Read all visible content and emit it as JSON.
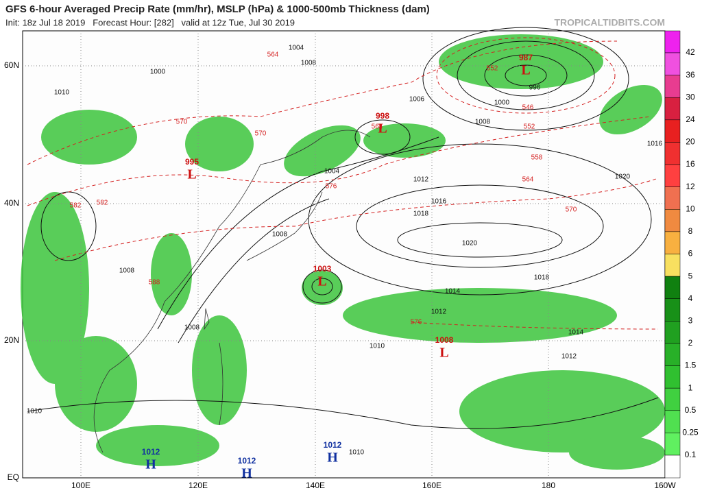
{
  "header": {
    "title": "GFS 6-hour Averaged Precip Rate (mm/hr), MSLP (hPa) & 1000-500mb Thickness (dam)",
    "subtitle": "Init: 18z Jul 18 2019   Forecast Hour: [282]   valid at 12z Tue, Jul 30 2019",
    "watermark": "TROPICALTIDBITS.COM"
  },
  "map": {
    "lat_labels": [
      "60N",
      "40N",
      "20N",
      "EQ"
    ],
    "lon_labels": [
      "100E",
      "120E",
      "140E",
      "160E",
      "180",
      "160W"
    ],
    "colorbar": [
      "42",
      "36",
      "30",
      "24",
      "20",
      "16",
      "12",
      "10",
      "8",
      "6",
      "5",
      "4",
      "3",
      "2",
      "1.5",
      "1",
      "0.5",
      "0.25",
      "0.1"
    ],
    "centers": [
      {
        "type": "L",
        "value": "987"
      },
      {
        "type": "L",
        "value": "998"
      },
      {
        "type": "L",
        "value": "995"
      },
      {
        "type": "L",
        "value": "1003"
      },
      {
        "type": "L",
        "value": "1008"
      },
      {
        "type": "H",
        "value": "1012"
      },
      {
        "type": "H",
        "value": "1012"
      },
      {
        "type": "H",
        "value": "1012"
      }
    ],
    "isobar_labels": [
      "1004",
      "1008",
      "1000",
      "1010",
      "1004",
      "1008",
      "1012",
      "1016",
      "1018",
      "1020",
      "1018",
      "1014",
      "1012",
      "1010",
      "1010",
      "1010",
      "1008",
      "1012",
      "1014",
      "1016",
      "1020",
      "1008",
      "1006",
      "1000",
      "996",
      "1008"
    ],
    "thickness_labels": [
      "564",
      "570",
      "552",
      "546",
      "552",
      "558",
      "564",
      "570",
      "576",
      "582",
      "588",
      "576",
      "564",
      "570",
      "582"
    ]
  }
}
